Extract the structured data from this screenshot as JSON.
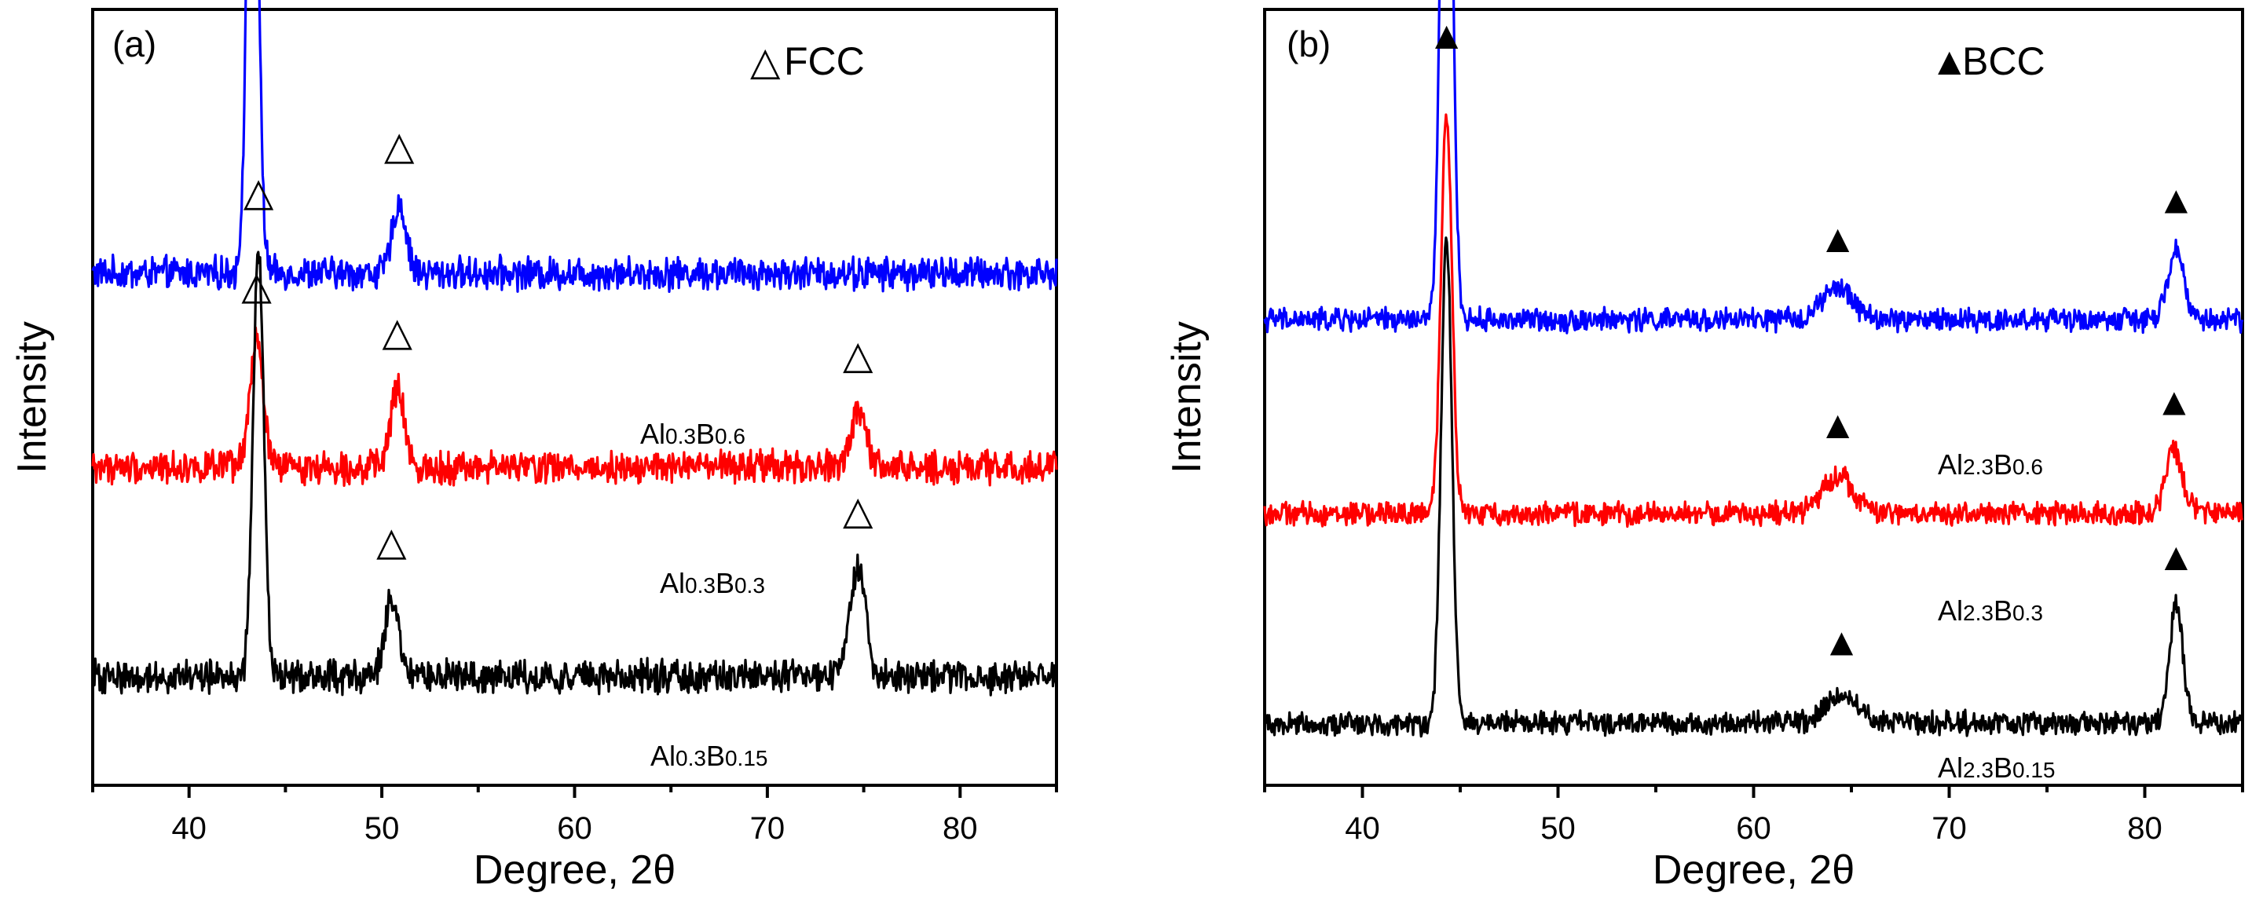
{
  "chart_data": [
    {
      "type": "line",
      "panel": "(a)",
      "xlabel": "Degree, 2θ",
      "ylabel": "Intensity",
      "xlim": [
        35,
        85
      ],
      "xticks": [
        40,
        50,
        60,
        70,
        80
      ],
      "yticks_shown": false,
      "legend": {
        "symbol": "△",
        "text": "FCC",
        "position": "top-right"
      },
      "marker_symbol": "△",
      "series": [
        {
          "name": "Al0.3B0.6",
          "label_main": "Al",
          "label_sub1": "0.3",
          "label_b": "B",
          "label_sub2": "0.6",
          "color": "#0000ff",
          "baseline": 0.66,
          "noise": 0.035,
          "peaks": [
            {
              "x": 43.3,
              "height": 0.77,
              "width": 0.28
            },
            {
              "x": 50.9,
              "height": 0.09,
              "width": 0.35
            }
          ],
          "markers": [
            43.3,
            50.9
          ]
        },
        {
          "name": "Al0.3B0.3",
          "label_main": "Al",
          "label_sub1": "0.3",
          "label_b": "B",
          "label_sub2": "0.3",
          "color": "#ff0000",
          "baseline": 0.41,
          "noise": 0.035,
          "peaks": [
            {
              "x": 43.5,
              "height": 0.16,
              "width": 0.35
            },
            {
              "x": 50.8,
              "height": 0.1,
              "width": 0.35
            },
            {
              "x": 74.7,
              "height": 0.07,
              "width": 0.4
            }
          ],
          "markers": [
            43.5,
            50.8,
            74.7
          ]
        },
        {
          "name": "Al0.3B0.15",
          "label_main": "Al",
          "label_sub1": "0.3",
          "label_b": "B",
          "label_sub2": "0.15",
          "color": "#000000",
          "baseline": 0.14,
          "noise": 0.035,
          "peaks": [
            {
              "x": 43.6,
              "height": 0.55,
              "width": 0.28
            },
            {
              "x": 50.5,
              "height": 0.1,
              "width": 0.35
            },
            {
              "x": 74.7,
              "height": 0.14,
              "width": 0.4
            }
          ],
          "markers": [
            43.6,
            50.5,
            74.7
          ]
        }
      ]
    },
    {
      "type": "line",
      "panel": "(b)",
      "xlabel": "Degree, 2θ",
      "ylabel": "Intensity",
      "xlim": [
        35,
        85
      ],
      "xticks": [
        40,
        50,
        60,
        70,
        80
      ],
      "yticks_shown": false,
      "legend": {
        "symbol": "▲",
        "text": "BCC",
        "position": "top-right"
      },
      "marker_symbol": "▲",
      "series": [
        {
          "name": "Al2.3B0.6",
          "label_main": "Al",
          "label_sub1": "2.3",
          "label_b": "B",
          "label_sub2": "0.6",
          "color": "#0000ff",
          "baseline": 0.6,
          "noise": 0.025,
          "peaks": [
            {
              "x": 44.3,
              "height": 0.97,
              "width": 0.28
            },
            {
              "x": 64.3,
              "height": 0.04,
              "width": 0.8
            },
            {
              "x": 81.6,
              "height": 0.09,
              "width": 0.4
            }
          ],
          "markers": [
            64.3,
            81.6
          ],
          "top_marker": 44.3
        },
        {
          "name": "Al2.3B0.3",
          "label_main": "Al",
          "label_sub1": "2.3",
          "label_b": "B",
          "label_sub2": "0.3",
          "color": "#ff0000",
          "baseline": 0.35,
          "noise": 0.025,
          "peaks": [
            {
              "x": 44.3,
              "height": 0.52,
              "width": 0.28
            },
            {
              "x": 64.3,
              "height": 0.05,
              "width": 0.8
            },
            {
              "x": 81.5,
              "height": 0.08,
              "width": 0.45
            }
          ],
          "markers": [
            64.3,
            81.5
          ]
        },
        {
          "name": "Al2.3B0.15",
          "label_main": "Al",
          "label_sub1": "2.3",
          "label_b": "B",
          "label_sub2": "0.15",
          "color": "#000000",
          "baseline": 0.08,
          "noise": 0.025,
          "peaks": [
            {
              "x": 44.3,
              "height": 0.62,
              "width": 0.28
            },
            {
              "x": 64.5,
              "height": 0.04,
              "width": 0.8
            },
            {
              "x": 81.6,
              "height": 0.15,
              "width": 0.35
            }
          ],
          "markers": [
            64.5,
            81.6
          ]
        }
      ]
    }
  ]
}
